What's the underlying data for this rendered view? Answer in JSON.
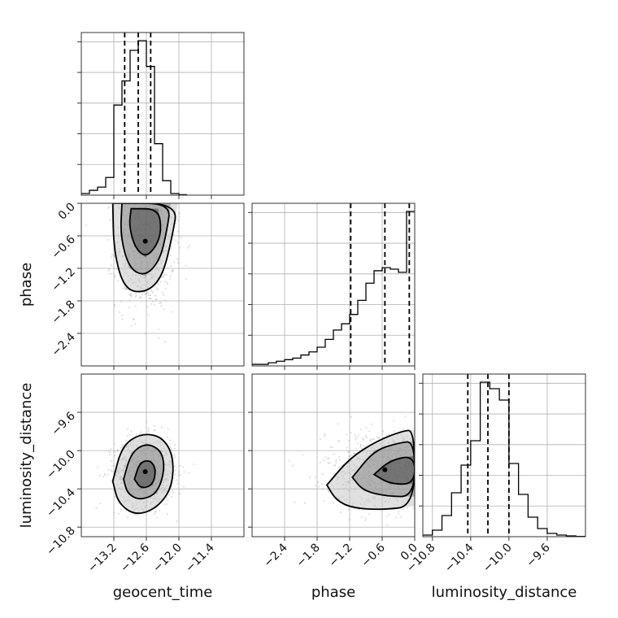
{
  "chart_data": {
    "type": "corner",
    "parameters": [
      "geocent_time",
      "phase",
      "luminosity_distance"
    ],
    "axis_labels": [
      "geocent_time",
      "phase",
      "luminosity_distance"
    ],
    "grid": true,
    "axes": {
      "geocent_time": {
        "range": [
          -13.8,
          -10.8
        ],
        "ticks": [
          -13.2,
          -12.6,
          -12.0,
          -11.4
        ],
        "tick_labels": [
          "−13.2",
          "−12.6",
          "−12.0",
          "−11.4"
        ]
      },
      "phase": {
        "range": [
          -3.0,
          0.0
        ],
        "ticks": [
          -2.4,
          -1.8,
          -1.2,
          -0.6,
          0.0
        ],
        "tick_labels": [
          "−2.4",
          "−1.8",
          "−1.2",
          "−0.6",
          "0.0"
        ]
      },
      "luminosity_distance": {
        "range": [
          -10.9,
          -9.2
        ],
        "ticks": [
          -10.8,
          -10.4,
          -10.0,
          -9.6
        ],
        "tick_labels": [
          "−10.8",
          "−10.4",
          "−10.0",
          "−9.6"
        ]
      }
    },
    "histograms": [
      {
        "parameter": "geocent_time",
        "bin_edges": [
          -13.8,
          -13.65,
          -13.5,
          -13.35,
          -13.2,
          -13.05,
          -12.9,
          -12.75,
          -12.6,
          -12.45,
          -12.3,
          -12.15,
          -12.0,
          -11.85
        ],
        "counts": [
          0.01,
          0.03,
          0.05,
          0.11,
          0.56,
          0.71,
          0.9,
          0.96,
          0.8,
          0.32,
          0.09,
          0.01,
          0.003
        ],
        "quantiles": [
          -13.0,
          -12.75,
          -12.52
        ]
      },
      {
        "parameter": "phase",
        "bin_edges": [
          -3.0,
          -2.85,
          -2.7,
          -2.55,
          -2.4,
          -2.25,
          -2.1,
          -1.95,
          -1.8,
          -1.65,
          -1.5,
          -1.35,
          -1.2,
          -1.05,
          -0.9,
          -0.75,
          -0.6,
          -0.45,
          -0.3,
          -0.15,
          0.0
        ],
        "counts": [
          0.01,
          0.01,
          0.02,
          0.03,
          0.04,
          0.05,
          0.07,
          0.09,
          0.12,
          0.17,
          0.23,
          0.27,
          0.33,
          0.42,
          0.53,
          0.61,
          0.63,
          0.62,
          0.6,
          0.99
        ],
        "quantiles": [
          -1.18,
          -0.55,
          -0.1
        ]
      },
      {
        "parameter": "luminosity_distance",
        "bin_edges": [
          -10.9,
          -10.8,
          -10.7,
          -10.6,
          -10.5,
          -10.4,
          -10.3,
          -10.2,
          -10.1,
          -10.0,
          -9.9,
          -9.8,
          -9.7,
          -9.6,
          -9.5,
          -9.4,
          -9.3,
          -9.2
        ],
        "counts": [
          0.01,
          0.04,
          0.13,
          0.27,
          0.44,
          0.59,
          0.95,
          0.91,
          0.84,
          0.45,
          0.26,
          0.12,
          0.05,
          0.02,
          0.01,
          0.005,
          0.002
        ],
        "quantiles": [
          -10.43,
          -10.22,
          -10.0
        ]
      }
    ],
    "pairs": [
      {
        "x": "geocent_time",
        "y": "phase",
        "cloud_center": [
          -12.62,
          -0.7
        ],
        "cloud_spread": [
          0.27,
          0.62
        ],
        "contours": [
          [
            [
              -12.88,
              -0.1
            ],
            [
              -12.38,
              -0.1
            ],
            [
              -12.32,
              -0.5
            ],
            [
              -12.42,
              -0.8
            ],
            [
              -12.62,
              -1.0
            ],
            [
              -12.82,
              -0.8
            ],
            [
              -12.92,
              -0.4
            ]
          ],
          [
            [
              -13.05,
              0.0
            ],
            [
              -12.15,
              0.0
            ],
            [
              -12.22,
              -0.5
            ],
            [
              -12.35,
              -1.05
            ],
            [
              -12.62,
              -1.35
            ],
            [
              -12.92,
              -1.2
            ],
            [
              -13.08,
              -0.6
            ]
          ],
          [
            [
              -13.22,
              0.0
            ],
            [
              -12.02,
              0.0
            ],
            [
              -12.12,
              -0.6
            ],
            [
              -12.3,
              -1.35
            ],
            [
              -12.6,
              -1.65
            ],
            [
              -13.0,
              -1.6
            ],
            [
              -13.2,
              -0.9
            ]
          ]
        ]
      },
      {
        "x": "geocent_time",
        "y": "luminosity_distance",
        "cloud_center": [
          -12.62,
          -10.22
        ],
        "cloud_spread": [
          0.28,
          0.18
        ],
        "contours": [
          [
            [
              -12.82,
              -10.3
            ],
            [
              -12.72,
              -10.12
            ],
            [
              -12.52,
              -10.1
            ],
            [
              -12.42,
              -10.2
            ],
            [
              -12.48,
              -10.36
            ],
            [
              -12.7,
              -10.4
            ]
          ],
          [
            [
              -13.02,
              -10.3
            ],
            [
              -12.88,
              -10.02
            ],
            [
              -12.6,
              -9.92
            ],
            [
              -12.32,
              -10.0
            ],
            [
              -12.26,
              -10.2
            ],
            [
              -12.4,
              -10.45
            ],
            [
              -12.72,
              -10.52
            ],
            [
              -12.95,
              -10.45
            ]
          ],
          [
            [
              -13.22,
              -10.32
            ],
            [
              -13.05,
              -9.95
            ],
            [
              -12.7,
              -9.82
            ],
            [
              -12.32,
              -9.85
            ],
            [
              -12.1,
              -10.05
            ],
            [
              -12.12,
              -10.38
            ],
            [
              -12.4,
              -10.6
            ],
            [
              -12.8,
              -10.68
            ],
            [
              -13.12,
              -10.55
            ]
          ]
        ]
      },
      {
        "x": "phase",
        "y": "luminosity_distance",
        "cloud_center": [
          -0.55,
          -10.2
        ],
        "cloud_spread": [
          0.55,
          0.2
        ],
        "contours": [
          [
            [
              -0.75,
              -10.25
            ],
            [
              -0.45,
              -10.1
            ],
            [
              0.0,
              -10.05
            ],
            [
              0.0,
              -10.35
            ],
            [
              -0.45,
              -10.35
            ]
          ],
          [
            [
              -1.15,
              -10.28
            ],
            [
              -0.75,
              -10.0
            ],
            [
              -0.3,
              -9.92
            ],
            [
              0.0,
              -9.9
            ],
            [
              0.0,
              -10.48
            ],
            [
              -0.5,
              -10.48
            ],
            [
              -0.95,
              -10.42
            ]
          ],
          [
            [
              -1.62,
              -10.36
            ],
            [
              -1.2,
              -10.08
            ],
            [
              -0.7,
              -9.9
            ],
            [
              -0.25,
              -9.8
            ],
            [
              0.0,
              -9.78
            ],
            [
              0.0,
              -10.58
            ],
            [
              -0.6,
              -10.62
            ],
            [
              -1.15,
              -10.6
            ],
            [
              -1.45,
              -10.52
            ]
          ]
        ]
      }
    ]
  }
}
